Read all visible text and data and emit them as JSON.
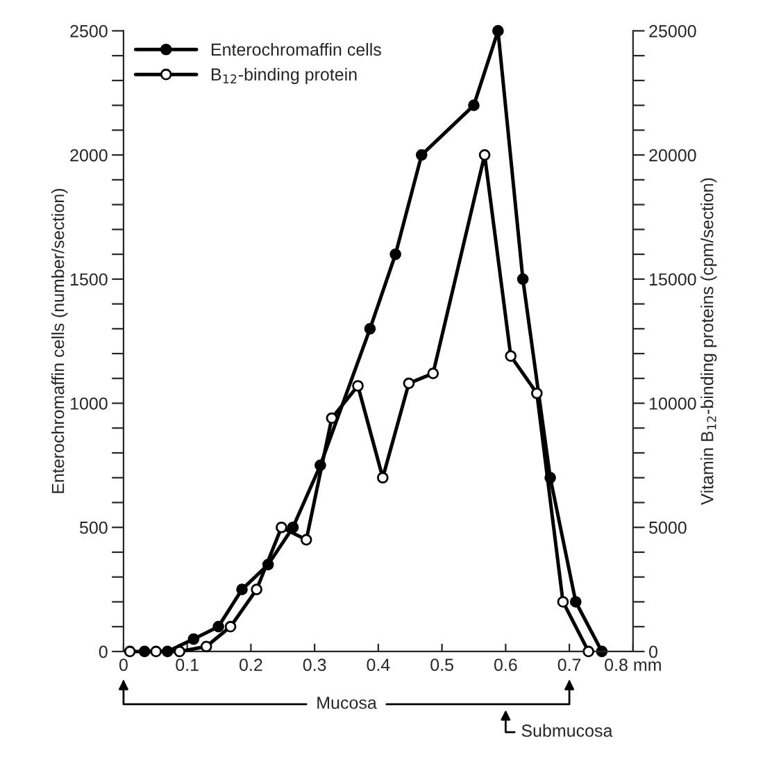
{
  "chart_data": {
    "type": "line",
    "xlabel": null,
    "ylabel": "Enterochromaffin cells (number/section)",
    "y2label": "Vitamin B$_{12}$-binding proteins (cpm/section)",
    "series": [
      {
        "name": "Enterochromaffin cells",
        "color": "#000000",
        "marker": "circle",
        "x": [
          0.033,
          0.069,
          0.11,
          0.149,
          0.186,
          0.227,
          0.266,
          0.309,
          0.387,
          0.427,
          0.468,
          0.55,
          0.588,
          0.627,
          0.67,
          0.71,
          0.751
        ],
        "values": [
          0,
          0,
          50,
          100,
          250,
          350,
          500,
          750,
          1300,
          1600,
          2000,
          2200,
          2500,
          1500,
          700,
          200,
          0
        ]
      },
      {
        "name": "B$_{12}$-binding protein",
        "color": "#000000",
        "marker": "circle",
        "axis": "y2",
        "x": [
          0.01,
          0.051,
          0.088,
          0.13,
          0.168,
          0.209,
          0.248,
          0.287,
          0.327,
          0.368,
          0.407,
          0.448,
          0.486,
          0.567,
          0.608,
          0.649,
          0.69,
          0.73
        ],
        "values": [
          0,
          0,
          0,
          200,
          1000,
          2500,
          5000,
          4500,
          9400,
          10700,
          7000,
          10800,
          11200,
          20000,
          11900,
          10400,
          2000,
          0
        ]
      }
    ],
    "xlim": [
      0,
      0.8
    ],
    "xticks": [
      0,
      0.1,
      0.2,
      0.3,
      0.4,
      0.5,
      0.6,
      0.7,
      {
        "value": 0.8,
        "label": "0.8 mm"
      }
    ],
    "ylim": [
      0,
      2500
    ],
    "yticks": [
      0,
      {
        "value": 100,
        "label": null
      },
      {
        "value": 200,
        "label": null
      },
      {
        "value": 300,
        "label": null
      },
      {
        "value": 400,
        "label": null
      },
      500,
      {
        "value": 600,
        "label": null
      },
      {
        "value": 700,
        "label": null
      },
      {
        "value": 800,
        "label": null
      },
      {
        "value": 900,
        "label": null
      },
      1000,
      {
        "value": 1100,
        "label": null
      },
      {
        "value": 1200,
        "label": null
      },
      {
        "value": 1300,
        "label": null
      },
      {
        "value": 1400,
        "label": null
      },
      1500,
      {
        "value": 1600,
        "label": null
      },
      {
        "value": 1700,
        "label": null
      },
      {
        "value": 1800,
        "label": null
      },
      {
        "value": 1900,
        "label": null
      },
      2000,
      {
        "value": 2100,
        "label": null
      },
      {
        "value": 2200,
        "label": null
      },
      {
        "value": 2300,
        "label": null
      },
      {
        "value": 2400,
        "label": null
      },
      2500
    ],
    "y2lim": [
      0,
      25000
    ],
    "y2ticks": [
      0,
      {
        "value": 1000,
        "label": null
      },
      {
        "value": 2000,
        "label": null
      },
      {
        "value": 3000,
        "label": null
      },
      {
        "value": 4000,
        "label": null
      },
      5000,
      {
        "value": 6000,
        "label": null
      },
      {
        "value": 7000,
        "label": null
      },
      {
        "value": 8000,
        "label": null
      },
      {
        "value": 9000,
        "label": null
      },
      10000,
      {
        "value": 11000,
        "label": null
      },
      {
        "value": 12000,
        "label": null
      },
      {
        "value": 13000,
        "label": null
      },
      {
        "value": 14000,
        "label": null
      },
      15000,
      {
        "value": 16000,
        "label": null
      },
      {
        "value": 17000,
        "label": null
      },
      {
        "value": 18000,
        "label": null
      },
      {
        "value": 19000,
        "label": null
      },
      20000,
      {
        "value": 21000,
        "label": null
      },
      {
        "value": 22000,
        "label": null
      },
      {
        "value": 23000,
        "label": null
      },
      {
        "value": 24000,
        "label": null
      },
      25000
    ],
    "legend": "top left",
    "grid": false,
    "annotations": [
      "Mucosa",
      "Submucosa"
    ]
  }
}
